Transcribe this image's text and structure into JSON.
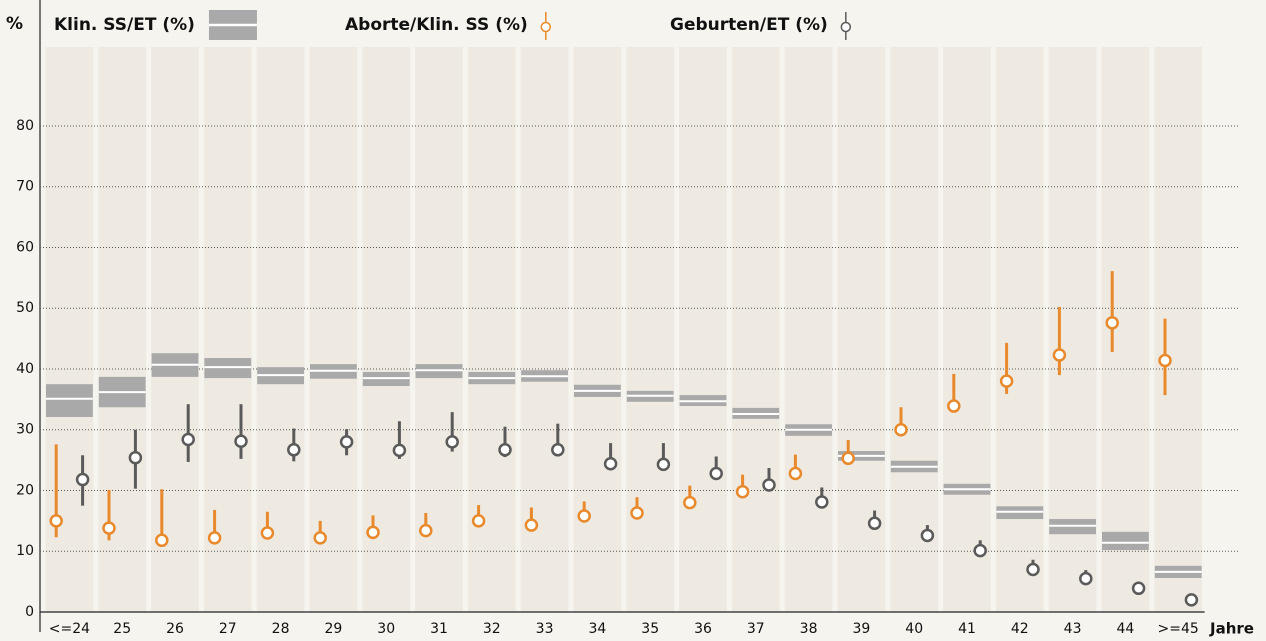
{
  "chart_data": {
    "type": "range-error",
    "y_axis_label": "%",
    "x_axis_label": "Jahre",
    "categories": [
      "<=24",
      "25",
      "26",
      "27",
      "28",
      "29",
      "30",
      "31",
      "32",
      "33",
      "34",
      "35",
      "36",
      "37",
      "38",
      "39",
      "40",
      "41",
      "42",
      "43",
      "44",
      ">=45"
    ],
    "ylim": [
      0,
      93
    ],
    "yticks": [
      0,
      10,
      20,
      30,
      40,
      50,
      60,
      70,
      80
    ],
    "grid": true,
    "series": [
      {
        "name": "Klin. SS/ET (%)",
        "color": "#a9a9a9",
        "style": "box",
        "values": [
          35.1,
          36.2,
          40.7,
          40.3,
          39,
          39.7,
          38.5,
          39.8,
          38.5,
          38.8,
          36.4,
          35.6,
          34.7,
          32.6,
          30,
          25.7,
          23.9,
          20.2,
          16.5,
          14.2,
          11.4,
          6.6
        ],
        "low": [
          32.1,
          33.7,
          38.7,
          38.5,
          37.5,
          38.4,
          37.2,
          38.5,
          37.5,
          37.9,
          35.4,
          34.6,
          33.9,
          31.8,
          29,
          24.9,
          23,
          19.3,
          15.3,
          12.8,
          10.2,
          5.6
        ],
        "high": [
          37.5,
          38.7,
          42.6,
          41.8,
          40.3,
          40.8,
          39.5,
          40.8,
          39.5,
          39.8,
          37.4,
          36.4,
          35.7,
          33.6,
          30.9,
          26.5,
          24.9,
          21.1,
          17.4,
          15.3,
          13.2,
          7.6
        ]
      },
      {
        "name": "Aborte/Klin. SS (%)",
        "color": "#e8892c",
        "style": "point",
        "offset": -0.25,
        "values": [
          15,
          13.8,
          11.8,
          12.2,
          13,
          12.2,
          13.1,
          13.4,
          15,
          14.3,
          15.8,
          16.3,
          18,
          19.8,
          22.8,
          25.3,
          30,
          33.9,
          38,
          42.3,
          47.6,
          41.4
        ],
        "low": [
          12.3,
          11.8,
          11,
          11.5,
          12,
          11.5,
          12,
          12.5,
          14,
          13.5,
          15,
          15.5,
          17,
          19,
          22,
          24.5,
          29,
          33,
          35.9,
          39,
          42.8,
          35.7
        ],
        "high": [
          27.6,
          20.1,
          20.2,
          16.8,
          16.5,
          15,
          15.9,
          16.3,
          17.6,
          17.2,
          18.2,
          18.9,
          20.8,
          22.6,
          25.9,
          28.3,
          33.7,
          39.2,
          44.3,
          50.2,
          56.1,
          48.3
        ]
      },
      {
        "name": "Geburten/ET (%)",
        "color": "#5a5a5a",
        "style": "point",
        "offset": 0.25,
        "values": [
          21.8,
          25.4,
          28.4,
          28.1,
          26.7,
          28,
          26.6,
          28,
          26.7,
          26.7,
          24.4,
          24.3,
          22.8,
          20.9,
          18.1,
          14.6,
          12.6,
          10.1,
          7,
          5.5,
          3.9,
          2
        ],
        "low": [
          17.5,
          20.3,
          24.7,
          25.2,
          24.8,
          25.8,
          25.2,
          26.4,
          25.5,
          26,
          24,
          24,
          22,
          20,
          17.5,
          14,
          12,
          9.5,
          6.5,
          5,
          3.5,
          1.5
        ],
        "high": [
          25.8,
          30,
          34.2,
          34.2,
          30.2,
          30.1,
          31.4,
          32.9,
          30.5,
          31,
          27.8,
          27.8,
          25.6,
          23.7,
          20.5,
          16.7,
          14.3,
          11.8,
          8.6,
          6.9,
          5,
          2.8
        ]
      }
    ]
  }
}
